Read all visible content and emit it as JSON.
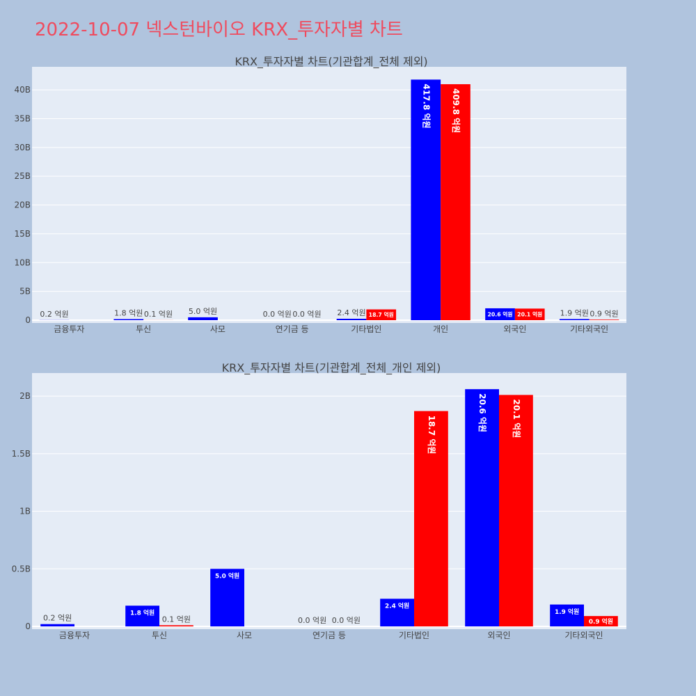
{
  "title": "2022-10-07 넥스턴바이오 KRX_투자자별 차트",
  "colors": {
    "buy": "#0000ff",
    "sell": "#ff0000",
    "plot_bg": "#e5ecf6",
    "page_bg": "#b0c4de",
    "title": "#ef4b5e"
  },
  "chart_data": [
    {
      "type": "bar",
      "title": "KRX_투자자별 차트(기관합계_전체 제외)",
      "categories": [
        "금융투자",
        "투신",
        "사모",
        "연기금 등",
        "기타법인",
        "개인",
        "외국인",
        "기타외국인"
      ],
      "series": [
        {
          "values": [
            0.02,
            0.18,
            0.5,
            0.0,
            0.24,
            41.78,
            2.06,
            0.19
          ],
          "labels": [
            "0.2 억원",
            "1.8 억원",
            "5.0 억원",
            "0.0 억원",
            "2.4 억원",
            "417.8 억원",
            "20.6 억원",
            "1.9 억원"
          ]
        },
        {
          "values": [
            0.0,
            0.01,
            0.0,
            0.0,
            1.87,
            40.98,
            2.01,
            0.09
          ],
          "labels": [
            "",
            "0.1 억원",
            "",
            "0.0 억원",
            "18.7 억원",
            "409.8 억원",
            "20.1 억원",
            "0.9 억원"
          ]
        }
      ],
      "ylim": [
        0,
        44
      ],
      "yticks": [
        0,
        5,
        10,
        15,
        20,
        25,
        30,
        35,
        40
      ],
      "yticklabels": [
        "0",
        "5B",
        "10B",
        "15B",
        "20B",
        "25B",
        "30B",
        "35B",
        "40B"
      ],
      "grid": true
    },
    {
      "type": "bar",
      "title": "KRX_투자자별 차트(기관합계_전체_개인 제외)",
      "categories": [
        "금융투자",
        "투신",
        "사모",
        "연기금 등",
        "기타법인",
        "외국인",
        "기타외국인"
      ],
      "series": [
        {
          "values": [
            0.02,
            0.18,
            0.5,
            0.0,
            0.24,
            2.06,
            0.19
          ],
          "labels": [
            "0.2 억원",
            "1.8 억원",
            "5.0 억원",
            "0.0 억원",
            "2.4 억원",
            "20.6 억원",
            "1.9 억원"
          ]
        },
        {
          "values": [
            0.0,
            0.01,
            0.0,
            0.0,
            1.87,
            2.01,
            0.09
          ],
          "labels": [
            "",
            "0.1 억원",
            "",
            "0.0 억원",
            "18.7 억원",
            "20.1 억원",
            "0.9 억원"
          ]
        }
      ],
      "ylim": [
        0,
        2.2
      ],
      "yticks": [
        0,
        0.5,
        1,
        1.5,
        2
      ],
      "yticklabels": [
        "0",
        "0.5B",
        "1B",
        "1.5B",
        "2B"
      ],
      "grid": true
    }
  ]
}
